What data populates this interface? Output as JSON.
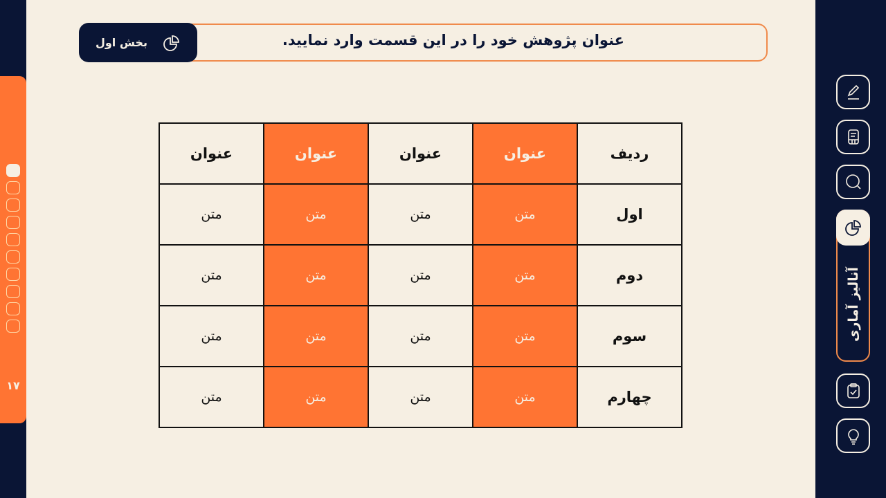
{
  "header": {
    "title": "عنوان پژوهش خود را در این قسمت وارد نمایید.",
    "section_label": "بخش اول"
  },
  "sidebar_left": {
    "page_number": "۱۷",
    "dots_total": 10,
    "active_dot": 0
  },
  "table": {
    "headers": [
      "ردیف",
      "عنوان",
      "عنوان",
      "عنوان",
      "عنوان"
    ],
    "rows": [
      [
        "اول",
        "متن",
        "متن",
        "متن",
        "متن"
      ],
      [
        "دوم",
        "متن",
        "متن",
        "متن",
        "متن"
      ],
      [
        "سوم",
        "متن",
        "متن",
        "متن",
        "متن"
      ],
      [
        "چهارم",
        "متن",
        "متن",
        "متن",
        "متن"
      ]
    ]
  },
  "sidebar_right": {
    "items": [
      {
        "icon": "pencil-icon"
      },
      {
        "icon": "document-icon"
      },
      {
        "icon": "search-icon"
      },
      {
        "icon": "pie-chart-icon",
        "label": "آنالیز آماری",
        "active": true
      },
      {
        "icon": "clipboard-check-icon"
      },
      {
        "icon": "lightbulb-icon"
      }
    ]
  },
  "colors": {
    "accent": "#FF7433",
    "navy": "#0A1535",
    "background": "#F6EFE3"
  }
}
